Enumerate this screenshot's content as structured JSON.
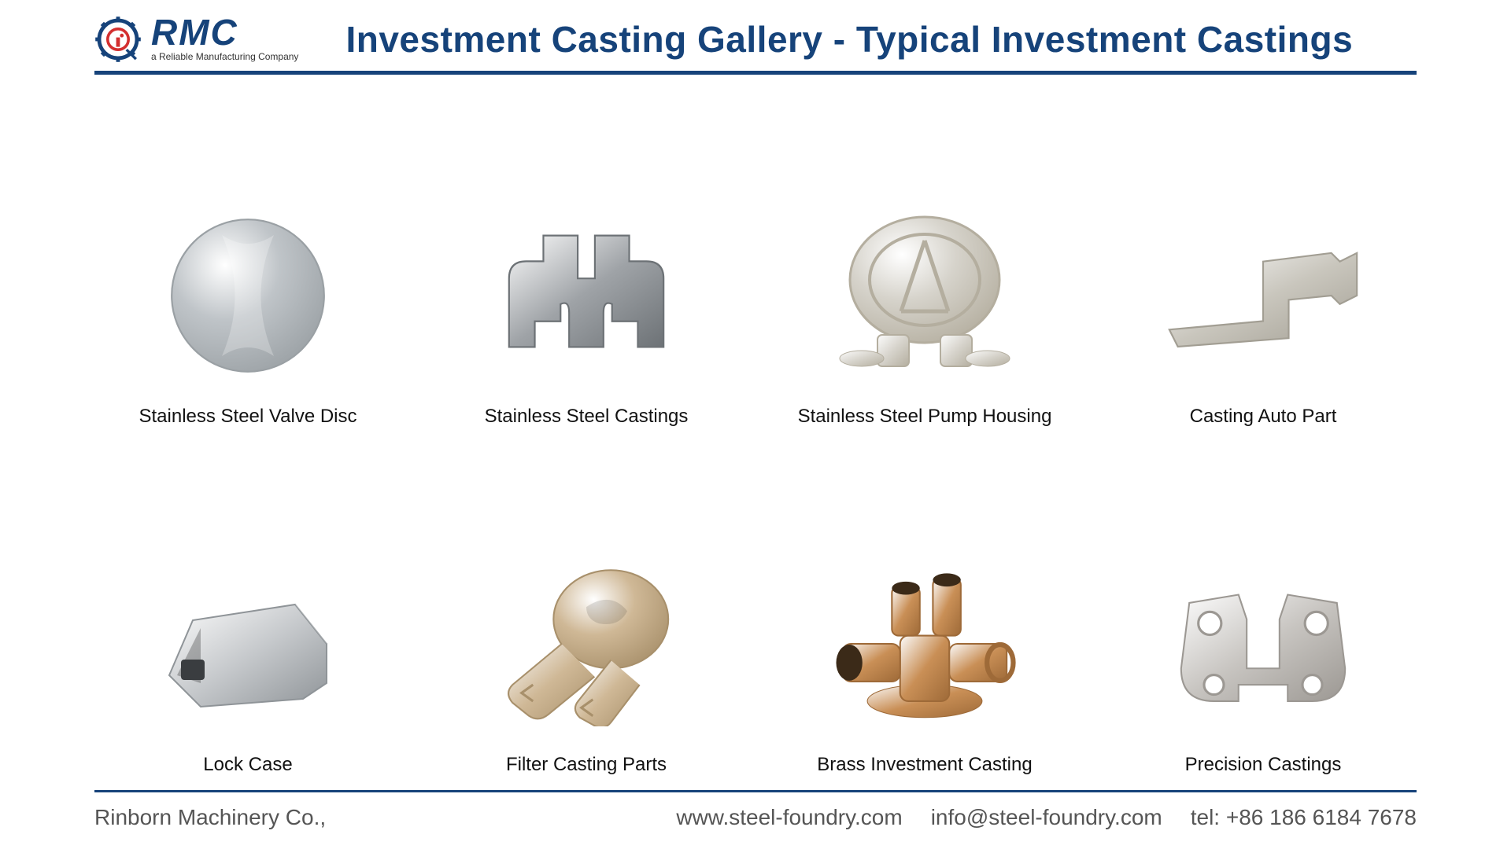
{
  "brand": {
    "name": "RMC",
    "tagline": "a Reliable Manufacturing Company",
    "primary_color": "#16437a",
    "accent_color": "#d32f2f"
  },
  "title": "Investment Casting Gallery - Typical Investment Castings",
  "items": [
    {
      "label": "Stainless Steel Valve Disc",
      "shape": "disc",
      "fill": "#bfc4c8",
      "fill2": "#9aa0a4"
    },
    {
      "label": "Stainless Steel Castings",
      "shape": "bracket",
      "fill": "#9fa3a7",
      "fill2": "#6d7276"
    },
    {
      "label": "Stainless Steel Pump Housing",
      "shape": "pump",
      "fill": "#d6d3cb",
      "fill2": "#b4ae9f"
    },
    {
      "label": "Casting Auto Part",
      "shape": "angle",
      "fill": "#c9c6bd",
      "fill2": "#a29e93"
    },
    {
      "label": "Lock Case",
      "shape": "lockcase",
      "fill": "#c6c9cc",
      "fill2": "#8f9498"
    },
    {
      "label": "Filter Casting Parts",
      "shape": "filter",
      "fill": "#cfb896",
      "fill2": "#a8906b"
    },
    {
      "label": "Brass Investment Casting",
      "shape": "brass",
      "fill": "#c98f56",
      "fill2": "#9e6a38"
    },
    {
      "label": "Precision Castings",
      "shape": "clevis",
      "fill": "#c7c4c0",
      "fill2": "#9c9893"
    }
  ],
  "footer": {
    "company": "Rinborn Machinery Co.,",
    "website": "www.steel-foundry.com",
    "email": "info@steel-foundry.com",
    "tel_label": "tel: +86 186 6184 7678"
  }
}
